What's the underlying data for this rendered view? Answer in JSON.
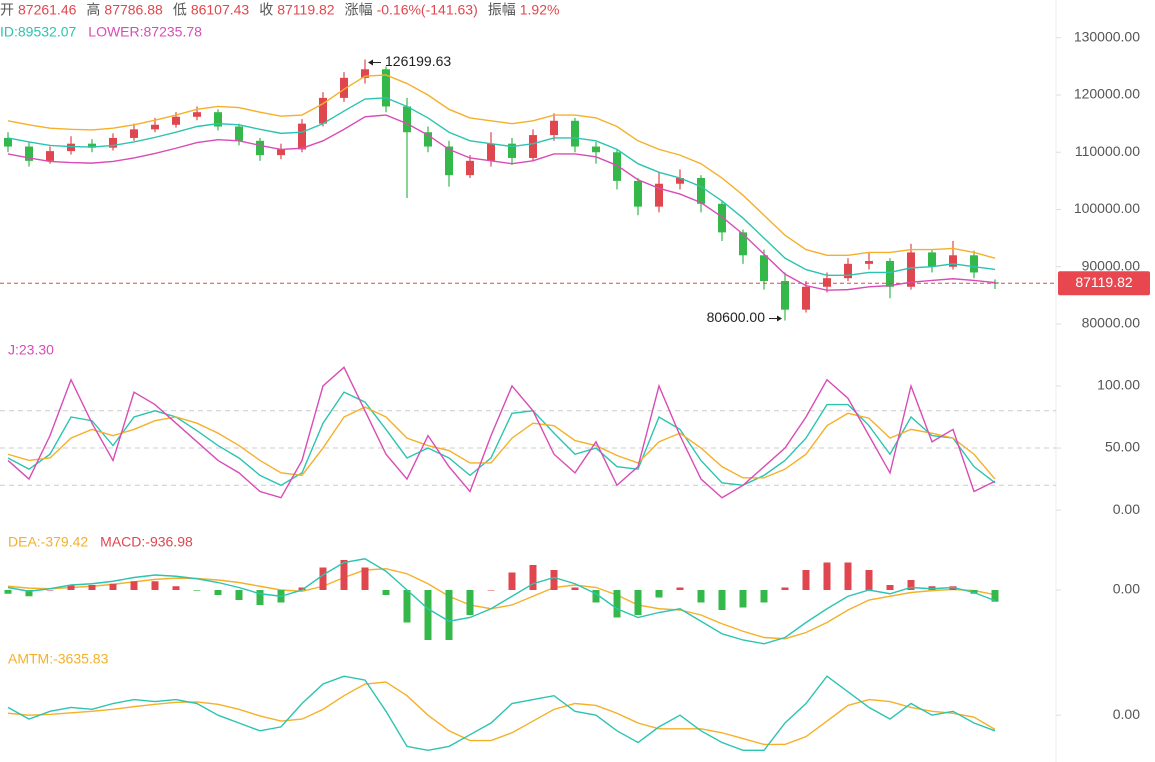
{
  "chart_data": [
    {
      "type": "candlestick",
      "header": [
        {
          "label": "开"
        },
        {
          "label": "高"
        },
        {
          "label": "低"
        },
        {
          "label": "收"
        },
        {
          "label": "涨幅",
          "value": "-0.16%(-141.63)"
        },
        {
          "label": "振幅",
          "value": "1.92%"
        }
      ],
      "up_color": "#e0464d",
      "down_color": "#34b84a",
      "open": [
        112500,
        111000,
        108500,
        110200,
        111500,
        110800,
        112500,
        114000,
        114800,
        116200,
        117000,
        114500,
        112000,
        109500,
        110500,
        115000,
        119500,
        123000,
        124500,
        118000,
        113500,
        111000,
        106000,
        108500,
        111500,
        109000,
        113000,
        115500,
        111000,
        110000,
        105000,
        100500,
        104500,
        105500,
        101000,
        96000,
        92000,
        87500,
        82500,
        86500,
        88000,
        90500,
        91000,
        86500,
        92500,
        90000,
        92000,
        87261.46
      ],
      "high": [
        113500,
        111800,
        111000,
        112800,
        112300,
        113300,
        115000,
        116000,
        117000,
        118000,
        117500,
        115000,
        112500,
        111500,
        115800,
        120500,
        124000,
        126199.63,
        125000,
        119500,
        114500,
        112000,
        109500,
        113500,
        112500,
        114000,
        116800,
        116000,
        111800,
        110500,
        105500,
        106500,
        107000,
        106000,
        101500,
        96500,
        93000,
        89000,
        87500,
        89000,
        91500,
        92500,
        91500,
        94000,
        93000,
        94500,
        92800,
        87786.88
      ],
      "low": [
        110000,
        107500,
        108000,
        109600,
        110000,
        110300,
        112000,
        113500,
        114300,
        115600,
        113800,
        111200,
        108500,
        108800,
        110000,
        114500,
        118800,
        122000,
        117000,
        102000,
        110000,
        104000,
        105500,
        107500,
        107800,
        108500,
        112000,
        110000,
        108000,
        103500,
        99000,
        99500,
        103500,
        99500,
        94500,
        90500,
        86000,
        80600,
        82000,
        85500,
        87500,
        89500,
        84500,
        86000,
        89000,
        89500,
        88000,
        86107.43
      ],
      "close": [
        111000,
        108500,
        110200,
        111500,
        110800,
        112500,
        114000,
        114800,
        116200,
        117000,
        114500,
        112000,
        109500,
        110500,
        115000,
        119500,
        123000,
        124500,
        118000,
        113500,
        111000,
        106000,
        108500,
        111500,
        109000,
        113000,
        115500,
        111000,
        110000,
        105000,
        100500,
        104500,
        105500,
        101000,
        96000,
        92000,
        87500,
        82500,
        86500,
        88000,
        90500,
        91000,
        86500,
        92500,
        90000,
        92000,
        89000,
        87119.82
      ],
      "series": [
        {
          "color": "#f5b02a",
          "values": [
            115500,
            114800,
            114200,
            114000,
            113900,
            114200,
            114800,
            115600,
            116500,
            117500,
            118000,
            117800,
            117000,
            116300,
            116500,
            118500,
            121000,
            123300,
            123500,
            122000,
            120000,
            117500,
            116000,
            115500,
            115000,
            115500,
            116500,
            116500,
            116000,
            114500,
            112000,
            110500,
            109500,
            108000,
            105500,
            102500,
            99000,
            95500,
            93000,
            92000,
            92000,
            92500,
            92500,
            93000,
            93000,
            93200,
            92500,
            91500
          ]
        },
        {
          "name": "ID:89532.07",
          "color": "#2cc4b0",
          "values": [
            112500,
            111800,
            111200,
            111000,
            110900,
            111200,
            111800,
            112600,
            113500,
            114500,
            115000,
            114800,
            114000,
            113300,
            113500,
            115000,
            117200,
            119300,
            119500,
            118000,
            116000,
            113500,
            112000,
            111500,
            111000,
            111500,
            112500,
            112500,
            112000,
            110500,
            108000,
            106500,
            105500,
            104000,
            101500,
            98500,
            95000,
            91500,
            89500,
            88500,
            88500,
            89000,
            89000,
            89800,
            90000,
            90500,
            90000,
            89532.07
          ]
        },
        {
          "name": "LOWER:87235.78",
          "color": "#d94cb5",
          "values": [
            109700,
            109000,
            108400,
            108200,
            108100,
            108400,
            109000,
            109800,
            110700,
            111700,
            112200,
            112000,
            111200,
            110500,
            110700,
            112000,
            114000,
            116200,
            116500,
            115000,
            113000,
            110500,
            109000,
            108500,
            108000,
            108500,
            109700,
            109700,
            109200,
            107700,
            105200,
            103700,
            102700,
            101200,
            98700,
            95700,
            92200,
            88700,
            86700,
            85900,
            86000,
            86500,
            86700,
            87300,
            87600,
            87900,
            87600,
            87235.78
          ]
        }
      ],
      "annotations": [
        "126199.63",
        "80600.00"
      ],
      "ylim": [
        77200,
        136600
      ],
      "yticks": [
        {
          "value": 80000,
          "label": "80000.00"
        },
        {
          "value": 90000,
          "label": "90000.00"
        },
        {
          "value": 100000,
          "label": "100000.00"
        },
        {
          "value": 110000,
          "label": "110000.00"
        },
        {
          "value": 120000,
          "label": "120000.00"
        },
        {
          "value": 130000,
          "label": "130000.00"
        }
      ]
    },
    {
      "type": "line",
      "series": [
        {
          "color": "#2cc4b0",
          "values": [
            42,
            33,
            45,
            75,
            72,
            52,
            75,
            80,
            75,
            64,
            52,
            42,
            28,
            20,
            30,
            70,
            95,
            87,
            65,
            42,
            50,
            42,
            28,
            42,
            78,
            80,
            62,
            45,
            50,
            35,
            33,
            75,
            65,
            40,
            22,
            20,
            28,
            40,
            58,
            85,
            85,
            68,
            45,
            75,
            60,
            58,
            35,
            22
          ]
        },
        {
          "color": "#f5b02a",
          "values": [
            45,
            40,
            42,
            58,
            65,
            60,
            65,
            72,
            75,
            70,
            62,
            52,
            40,
            30,
            28,
            50,
            75,
            83,
            75,
            58,
            52,
            48,
            38,
            38,
            58,
            70,
            68,
            56,
            52,
            44,
            38,
            55,
            62,
            50,
            35,
            26,
            26,
            33,
            45,
            68,
            78,
            74,
            58,
            65,
            62,
            58,
            45,
            25
          ]
        },
        {
          "name": "J:23.30",
          "color": "#d94cb5",
          "values": [
            40,
            25,
            60,
            105,
            70,
            40,
            95,
            85,
            70,
            55,
            40,
            30,
            15,
            10,
            40,
            100,
            115,
            80,
            45,
            25,
            60,
            35,
            15,
            60,
            100,
            80,
            45,
            30,
            55,
            20,
            35,
            100,
            60,
            25,
            10,
            20,
            35,
            50,
            75,
            105,
            90,
            60,
            30,
            100,
            55,
            65,
            15,
            23.3
          ]
        }
      ],
      "levels": [
        80,
        50,
        20
      ],
      "ylim": [
        -16,
        137
      ],
      "yticks": [
        {
          "value": 0,
          "label": "0.00"
        },
        {
          "value": 50,
          "label": "50.00"
        },
        {
          "value": 100,
          "label": "100.00"
        }
      ]
    },
    {
      "type": "macd",
      "up_color": "#e0464d",
      "down_color": "#34b84a",
      "series": [
        {
          "name": "DEA:-379.42",
          "color": "#f5b02a",
          "values": [
            300,
            150,
            100,
            200,
            300,
            450,
            650,
            850,
            950,
            920,
            800,
            600,
            300,
            0,
            -100,
            300,
            1000,
            1600,
            1700,
            1300,
            500,
            -500,
            -1200,
            -1500,
            -1200,
            -500,
            200,
            400,
            200,
            -400,
            -1200,
            -1500,
            -1600,
            -2000,
            -2700,
            -3300,
            -3800,
            -3900,
            -3400,
            -2600,
            -1600,
            -800,
            -500,
            -200,
            -50,
            50,
            -50,
            -379.42
          ]
        },
        {
          "name": "MACD:-936.98",
          "color": "#e0464d",
          "style": "bar",
          "values": [
            -300,
            -500,
            0,
            400,
            400,
            500,
            700,
            700,
            300,
            -50,
            -400,
            -800,
            -1200,
            -1000,
            200,
            1800,
            2400,
            1800,
            -400,
            -2600,
            -4000,
            -4000,
            -2000,
            0,
            1400,
            2000,
            1600,
            200,
            -1000,
            -2200,
            -2000,
            -600,
            200,
            -1000,
            -1600,
            -1400,
            -1000,
            200,
            1600,
            2200,
            2200,
            1600,
            400,
            800,
            300,
            300,
            -300,
            -936.98
          ]
        },
        {
          "color": "#2cc4b0",
          "values": [
            200,
            -100,
            100,
            400,
            500,
            700,
            1000,
            1200,
            1100,
            900,
            600,
            200,
            -300,
            -500,
            0,
            1200,
            2200,
            2500,
            1500,
            0,
            -1500,
            -2500,
            -2200,
            -1500,
            -500,
            500,
            1000,
            500,
            -300,
            -1500,
            -2200,
            -1800,
            -1500,
            -2500,
            -3500,
            -4000,
            -4300,
            -3800,
            -2600,
            -1500,
            -500,
            0,
            -300,
            200,
            100,
            200,
            -200,
            -848
          ]
        }
      ],
      "ylim": [
        -4400,
        4800
      ],
      "yticks": [
        {
          "value": 0,
          "label": "0.00"
        }
      ]
    },
    {
      "type": "line",
      "series": [
        {
          "name": "AMTM:-3635.83",
          "color": "#f5b02a",
          "values": [
            500,
            0,
            200,
            600,
            1000,
            1500,
            2200,
            2800,
            3300,
            3400,
            2800,
            1500,
            -200,
            -1500,
            -1000,
            1500,
            5000,
            8000,
            8500,
            5000,
            0,
            -4000,
            -6500,
            -6500,
            -4500,
            -1500,
            1500,
            3000,
            2500,
            500,
            -2000,
            -3500,
            -3500,
            -3500,
            -4500,
            -6000,
            -7500,
            -7500,
            -5500,
            -1500,
            2500,
            4000,
            3500,
            2000,
            1000,
            500,
            -500,
            -3635.83
          ]
        },
        {
          "color": "#2cc4b0",
          "values": [
            2000,
            -1000,
            1000,
            2000,
            1500,
            3000,
            4000,
            3500,
            4000,
            3000,
            0,
            -2000,
            -4000,
            -3000,
            3000,
            8000,
            10000,
            9000,
            1000,
            -8000,
            -9000,
            -8000,
            -5000,
            -2000,
            3000,
            4000,
            5000,
            1000,
            0,
            -4000,
            -7000,
            -3000,
            0,
            -4000,
            -7000,
            -9000,
            -9000,
            -2000,
            3000,
            10000,
            6000,
            2000,
            -1000,
            3000,
            0,
            1000,
            -2000,
            -4000
          ]
        }
      ],
      "ylim": [
        -12000,
        18000
      ],
      "yticks": [
        {
          "value": 0,
          "label": "0.00"
        }
      ]
    }
  ]
}
